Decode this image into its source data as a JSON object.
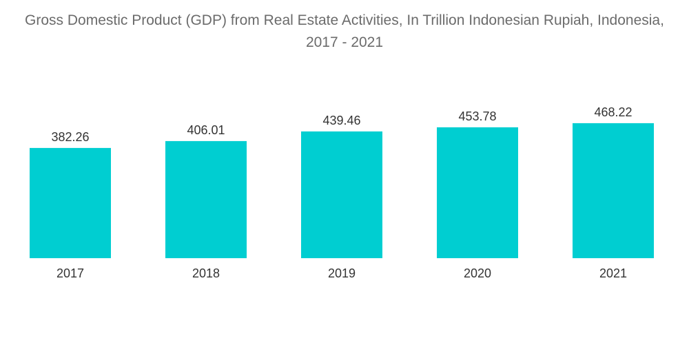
{
  "chart_data": {
    "type": "bar",
    "title": "Gross Domestic Product (GDP) from Real Estate Activities, In Trillion Indonesian Rupiah, Indonesia, 2017 - 2021",
    "categories": [
      "2017",
      "2018",
      "2019",
      "2020",
      "2021"
    ],
    "values": [
      382.26,
      406.01,
      439.46,
      453.78,
      468.22
    ],
    "value_labels": [
      "382.26",
      "406.01",
      "439.46",
      "453.78",
      "468.22"
    ],
    "xlabel": "",
    "ylabel": "",
    "ylim": [
      0,
      600
    ],
    "grid": false,
    "legend": "none",
    "bar_color": "#00CED1"
  }
}
